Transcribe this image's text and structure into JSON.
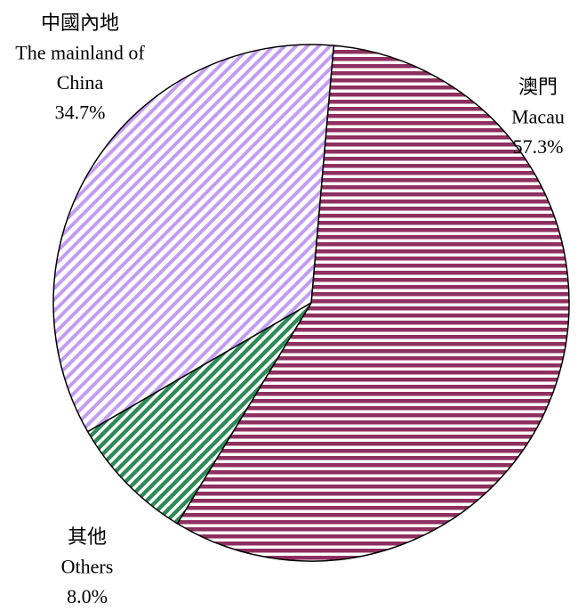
{
  "chart_data": {
    "type": "pie",
    "start_angle": 5,
    "direction": "clockwise",
    "labels": [
      [
        "澳門",
        "Macau"
      ],
      [
        "其他",
        "Others"
      ],
      [
        "中國內地",
        "The mainland of",
        "China"
      ]
    ],
    "values": [
      57.3,
      8.0,
      34.7
    ],
    "value_labels": [
      "57.3%",
      "8.0%",
      "34.7%"
    ],
    "colors": [
      "#8e2f5f",
      "#2e8b57",
      "#c39cf2"
    ]
  }
}
